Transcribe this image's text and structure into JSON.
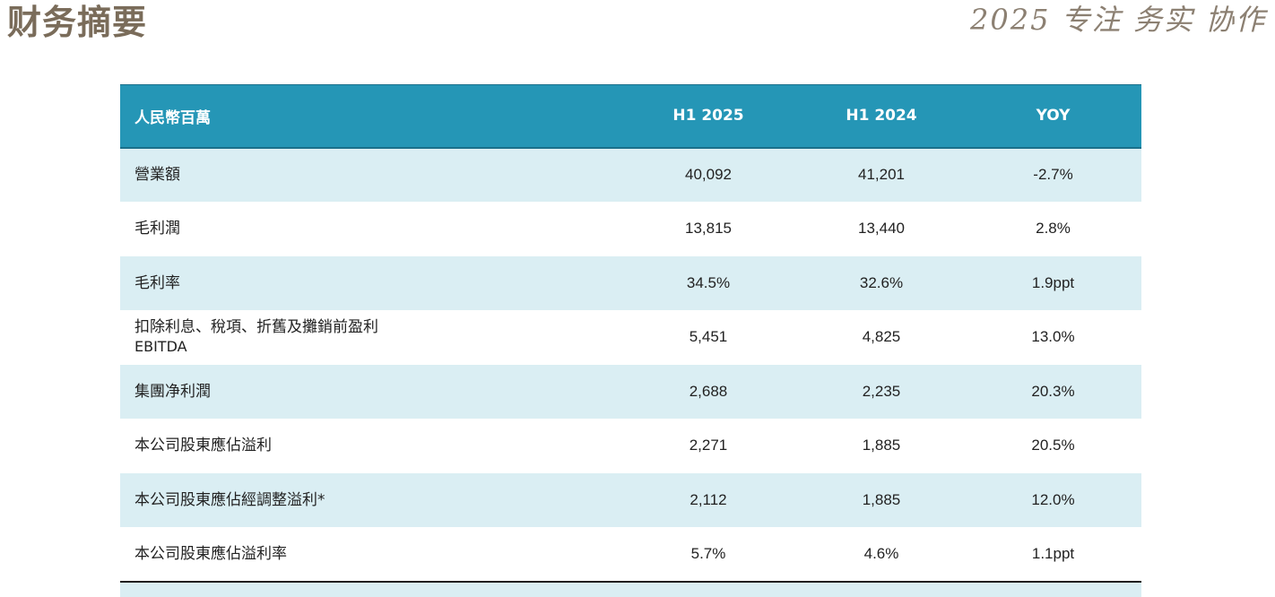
{
  "header": {
    "title": "财务摘要",
    "slogan": "2025 专注 务实 协作"
  },
  "table": {
    "columns": [
      "人民幣百萬",
      "H1 2025",
      "H1 2024",
      "YOY"
    ],
    "rows": [
      {
        "label": "營業額",
        "sublabel": "",
        "h1_2025": "40,092",
        "h1_2024": "41,201",
        "yoy": "-2.7%"
      },
      {
        "label": "毛利潤",
        "sublabel": "",
        "h1_2025": "13,815",
        "h1_2024": "13,440",
        "yoy": "2.8%"
      },
      {
        "label": "毛利率",
        "sublabel": "",
        "h1_2025": "34.5%",
        "h1_2024": "32.6%",
        "yoy": "1.9ppt"
      },
      {
        "label": "扣除利息、稅項、折舊及攤銷前盈利",
        "sublabel": "EBITDA",
        "h1_2025": "5,451",
        "h1_2024": "4,825",
        "yoy": "13.0%"
      },
      {
        "label": "集團净利潤",
        "sublabel": "",
        "h1_2025": "2,688",
        "h1_2024": "2,235",
        "yoy": "20.3%"
      },
      {
        "label": "本公司股東應佔溢利",
        "sublabel": "",
        "h1_2025": "2,271",
        "h1_2024": "1,885",
        "yoy": "20.5%"
      },
      {
        "label": "本公司股東應佔經調整溢利*",
        "sublabel": "",
        "h1_2025": "2,112",
        "h1_2024": "1,885",
        "yoy": "12.0%"
      },
      {
        "label": "本公司股東應佔溢利率",
        "sublabel": "",
        "h1_2025": "5.7%",
        "h1_2024": "4.6%",
        "yoy": "1.1ppt"
      }
    ]
  },
  "colors": {
    "header_bg": "#2596b6",
    "row_shade": "#daeef3",
    "title_color": "#7a6c5a"
  }
}
